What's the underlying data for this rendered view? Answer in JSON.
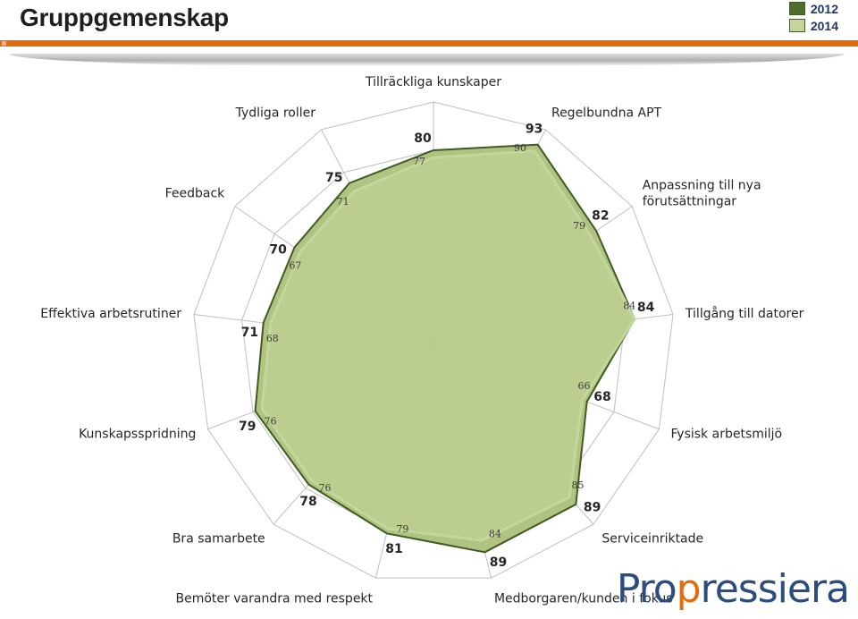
{
  "page": {
    "title": "Gruppgemenskap",
    "logo": {
      "text_pre": "Pro",
      "text_accent": "p",
      "text_post": "ressiera"
    }
  },
  "legend": [
    {
      "label": "2012",
      "color": "#4f6b2e"
    },
    {
      "label": "2014",
      "color": "#c4d79b"
    }
  ],
  "chart_data": {
    "type": "radar",
    "title": "",
    "range": [
      0,
      100
    ],
    "grid": true,
    "legend_position": "top-right",
    "categories": [
      "Tillräckliga kunskaper",
      "Regelbundna APT",
      "Anpassning till nya förutsättningar",
      "Tillgång till datorer",
      "Fysisk arbetsmiljö",
      "Serviceinriktade",
      "Medborgaren/kunden i fokus",
      "Bemöter varandra med respekt",
      "Bra samarbete",
      "Kunskapsspridning",
      "Effektiva arbetsrutiner",
      "Feedback",
      "Tydliga roller"
    ],
    "category_lines": [
      [
        "Tillräckliga kunskaper"
      ],
      [
        "Regelbundna APT"
      ],
      [
        "Anpassning till nya",
        "förutsättningar"
      ],
      [
        "Tillgång till datorer"
      ],
      [
        "Fysisk arbetsmiljö"
      ],
      [
        "Serviceinriktade"
      ],
      [
        "Medborgaren/kunden i fokus"
      ],
      [
        "Bemöter varandra med respekt"
      ],
      [
        "Bra samarbete"
      ],
      [
        "Kunskapsspridning"
      ],
      [
        "Effektiva arbetsrutiner"
      ],
      [
        "Feedback"
      ],
      [
        "Tydliga roller"
      ]
    ],
    "series": [
      {
        "name": "2012",
        "values": [
          80,
          93,
          82,
          84,
          68,
          89,
          89,
          81,
          78,
          79,
          71,
          70,
          75
        ]
      },
      {
        "name": "2014",
        "values": [
          77,
          90,
          79,
          84,
          66,
          85,
          84,
          79,
          76,
          76,
          68,
          67,
          71
        ]
      }
    ]
  }
}
